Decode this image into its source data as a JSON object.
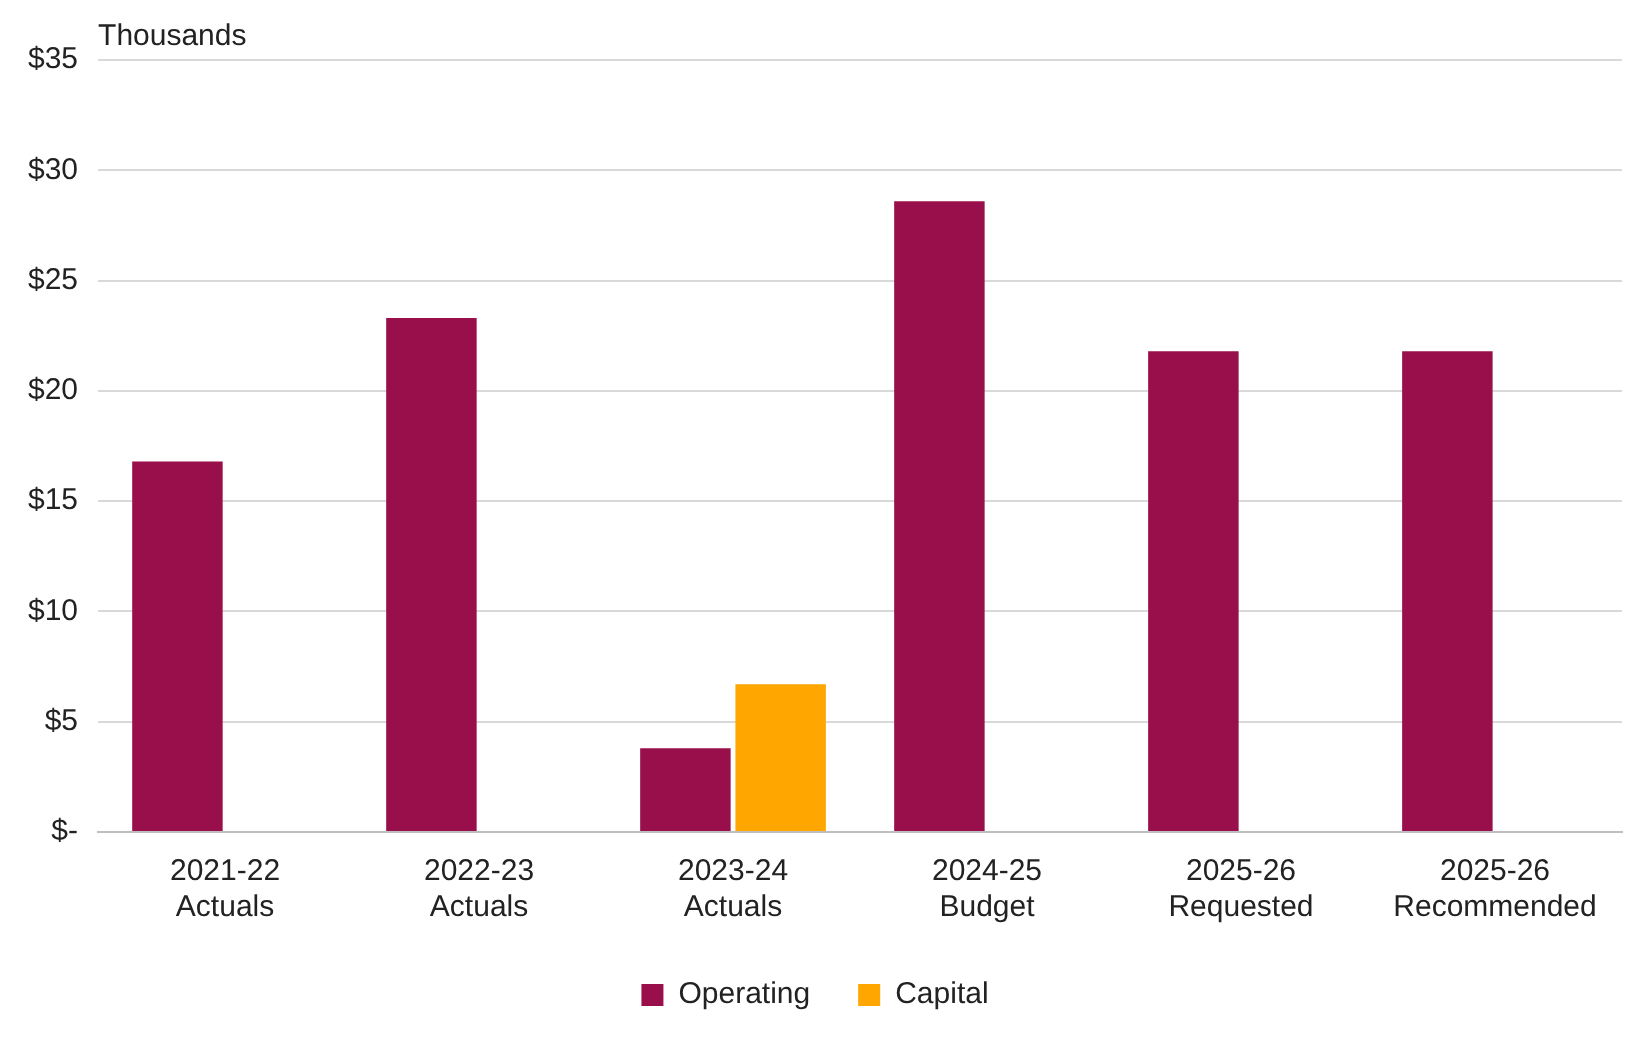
{
  "chart_data": {
    "type": "bar",
    "ylabel": "Thousands",
    "categories": [
      "2021-22 Actuals",
      "2022-23 Actuals",
      "2023-24 Actuals",
      "2024-25 Budget",
      "2025-26 Requested",
      "2025-26 Recommended"
    ],
    "series": [
      {
        "name": "Operating",
        "color": "#990f4b",
        "values": [
          16.8,
          23.3,
          3.8,
          28.6,
          21.8,
          21.8
        ]
      },
      {
        "name": "Capital",
        "color": "#ffa600",
        "values": [
          null,
          null,
          6.7,
          null,
          null,
          null
        ]
      }
    ],
    "ylim": [
      0,
      35
    ],
    "yticks": [
      {
        "value": 0,
        "label": "$-"
      },
      {
        "value": 5,
        "label": "$5"
      },
      {
        "value": 10,
        "label": "$10"
      },
      {
        "value": 15,
        "label": "$15"
      },
      {
        "value": 20,
        "label": "$20"
      },
      {
        "value": 25,
        "label": "$25"
      },
      {
        "value": 30,
        "label": "$30"
      },
      {
        "value": 35,
        "label": "$35"
      }
    ],
    "grid": "y",
    "legend": "bottom"
  }
}
